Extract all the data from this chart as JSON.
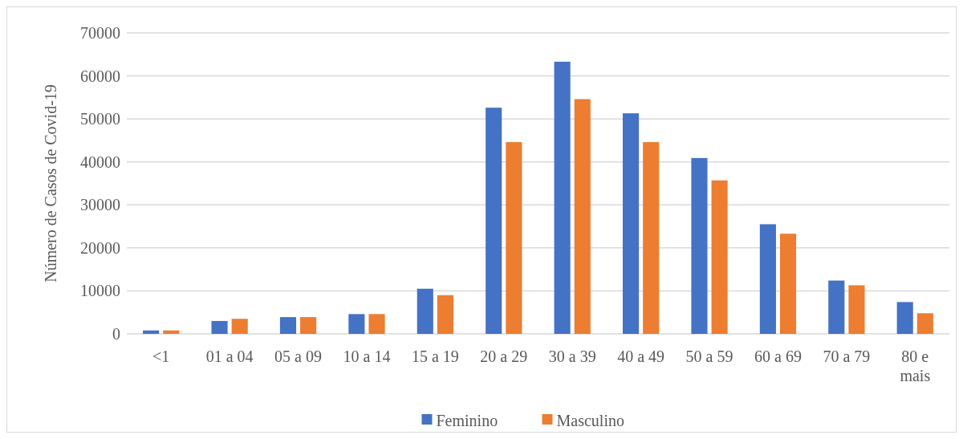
{
  "chart_data": {
    "type": "bar",
    "ylabel": "Número de Casos de Covid-19",
    "categories": [
      "<1",
      "01 a 04",
      "05 a 09",
      "10 a 14",
      "15 a 19",
      "20 a 29",
      "30 a 39",
      "40 a 49",
      "50 a 59",
      "60 a 69",
      "70 a 79",
      "80 e mais"
    ],
    "series": [
      {
        "name": "Feminino",
        "color": "#4472c4",
        "values": [
          800,
          3000,
          3900,
          4600,
          10500,
          52600,
          63300,
          51300,
          40900,
          25500,
          12400,
          7400
        ]
      },
      {
        "name": "Masculino",
        "color": "#ed7d31",
        "values": [
          800,
          3500,
          3900,
          4600,
          9000,
          44600,
          54600,
          44600,
          35700,
          23300,
          11300,
          4800
        ]
      }
    ],
    "ylim": [
      0,
      70000
    ],
    "yticks": [
      0,
      10000,
      20000,
      30000,
      40000,
      50000,
      60000,
      70000
    ],
    "grid": "y",
    "legend": "bottom"
  }
}
